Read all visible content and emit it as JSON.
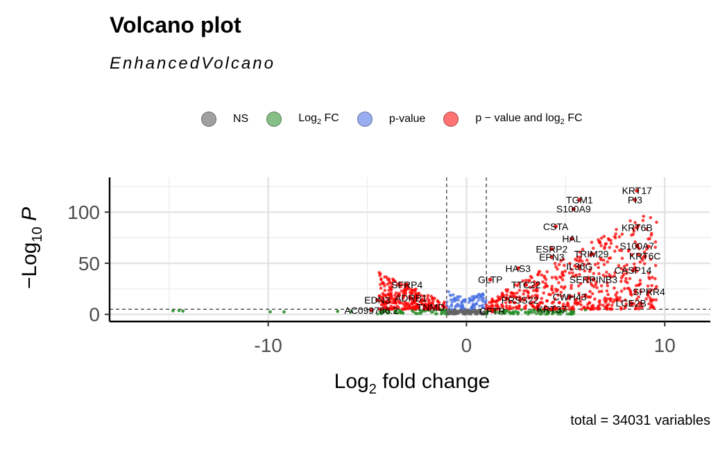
{
  "chart_data": {
    "type": "scatter",
    "title": "Volcano plot",
    "subtitle": "EnhancedVolcano",
    "caption": "total = 34031 variables",
    "xlabel": "Log2 fold change",
    "ylabel": "-Log10 P",
    "xlim": [
      -18,
      12.3
    ],
    "ylim": [
      -7,
      134
    ],
    "xticks": [
      -10,
      0,
      10
    ],
    "xtick_labels": [
      "-10",
      "0",
      "10"
    ],
    "yticks": [
      0,
      50,
      100
    ],
    "ytick_labels": [
      "0",
      "50",
      "100"
    ],
    "fc_cutoff": [
      -1,
      1
    ],
    "p_cutoff_neglog10": 5,
    "grid": true,
    "legend_position": "top",
    "legend": [
      {
        "key": "NS",
        "label": "NS",
        "color": "#808080"
      },
      {
        "key": "FC",
        "label_main": "Log",
        "label_sub": "2",
        "label_tail": " FC",
        "color": "#228b22"
      },
      {
        "key": "P",
        "label": "p-value",
        "color": "#4169e1"
      },
      {
        "key": "FCP",
        "label_main": "p − value and log",
        "label_sub": "2",
        "label_tail": " FC",
        "color": "#ff0000"
      }
    ],
    "series": [
      {
        "key": "FC",
        "points": [
          [
            -14.8,
            3.5
          ],
          [
            -14.5,
            3.8
          ],
          [
            -14.3,
            3.2
          ],
          [
            -9.9,
            2.5
          ],
          [
            -9.2,
            2.4
          ],
          [
            -6.5,
            3
          ],
          [
            -5.8,
            2.8
          ],
          [
            -4.2,
            2.2
          ],
          [
            -3.6,
            2.6
          ],
          [
            6.0,
            4.5
          ]
        ]
      }
    ],
    "labels": [
      {
        "text": "KRT17",
        "x": 8.6,
        "y": 121
      },
      {
        "text": "PI3",
        "x": 8.5,
        "y": 112
      },
      {
        "text": "TGM1",
        "x": 5.7,
        "y": 112
      },
      {
        "text": "S100A9",
        "x": 5.4,
        "y": 103
      },
      {
        "text": "CSTA",
        "x": 4.5,
        "y": 86
      },
      {
        "text": "KRT6B",
        "x": 8.6,
        "y": 85
      },
      {
        "text": "HAL",
        "x": 5.3,
        "y": 74
      },
      {
        "text": "S100A7",
        "x": 8.6,
        "y": 67
      },
      {
        "text": "ESRP2",
        "x": 4.3,
        "y": 64
      },
      {
        "text": "TRIM29",
        "x": 6.3,
        "y": 59
      },
      {
        "text": "EPN3",
        "x": 4.3,
        "y": 56
      },
      {
        "text": "KRT6C",
        "x": 9.0,
        "y": 57
      },
      {
        "text": "HAS3",
        "x": 2.6,
        "y": 45
      },
      {
        "text": "IL36G",
        "x": 5.7,
        "y": 47
      },
      {
        "text": "CASP14",
        "x": 8.4,
        "y": 43
      },
      {
        "text": "GLTP",
        "x": 1.2,
        "y": 34
      },
      {
        "text": "SERPINB3",
        "x": 6.4,
        "y": 34
      },
      {
        "text": "SFRP4",
        "x": -3.0,
        "y": 29
      },
      {
        "text": "TTC22",
        "x": 3.0,
        "y": 29
      },
      {
        "text": "SPRR4",
        "x": 9.2,
        "y": 22
      },
      {
        "text": "ADRB1",
        "x": -2.8,
        "y": 16
      },
      {
        "text": "CWH43",
        "x": 5.2,
        "y": 17
      },
      {
        "text": "EDN3",
        "x": -4.5,
        "y": 14
      },
      {
        "text": "PRSS22",
        "x": 2.7,
        "y": 14
      },
      {
        "text": "LCE2B",
        "x": 8.3,
        "y": 11
      },
      {
        "text": "TNMD",
        "x": -1.8,
        "y": 7
      },
      {
        "text": "KRT37",
        "x": 4.3,
        "y": 5
      },
      {
        "text": "AC099786.2",
        "x": -4.8,
        "y": 4
      },
      {
        "text": "CFTR",
        "x": 1.3,
        "y": 3
      }
    ]
  }
}
